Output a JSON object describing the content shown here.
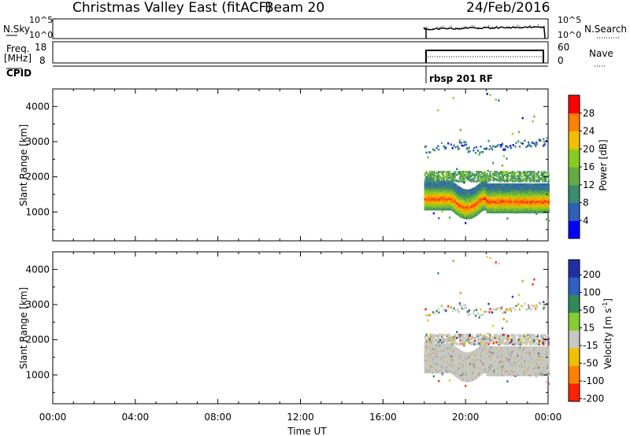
{
  "header": {
    "station": "Christmas Valley East (fitACF)",
    "beam": "Beam 20",
    "date": "24/Feb/2016"
  },
  "strips": {
    "nsky_label": "N.Sky",
    "nsky_ticks": [
      "10^5",
      "10^0"
    ],
    "nsearch_label": "N.Search",
    "nsearch_ticks": [
      "10^5",
      "10^0"
    ],
    "freq_label": "Freq.",
    "freq_unit": "[MHz]",
    "freq_ticks": [
      "18",
      "8"
    ],
    "nave_label": "Nave",
    "nave_ticks": [
      "60",
      "0"
    ],
    "cpid_label": "CPID",
    "cpid_value": "rbsp 201 RF"
  },
  "chart_data": [
    {
      "type": "heatmap",
      "panel": "power",
      "ylabel": "Slant Range [km]",
      "yticks": [
        "1000",
        "2000",
        "3000",
        "4000"
      ],
      "ylim": [
        180,
        4500
      ],
      "xlim": [
        0,
        24
      ],
      "colorbar_label": "Power [dB]",
      "colorbar_ticks": [
        "4",
        "8",
        "12",
        "16",
        "20",
        "24",
        "28"
      ],
      "colorbar_range": [
        0,
        32
      ],
      "colors": [
        "#0000ff",
        "#3060b8",
        "#3c8c6e",
        "#66aa44",
        "#88cc22",
        "#f0c000",
        "#ff8000",
        "#ff0000"
      ],
      "data_start_hour": 18.0,
      "data_end_hour": 24.0,
      "features": [
        {
          "name": "main-band",
          "range_km": [
            1000,
            1800
          ],
          "power_db": 28
        },
        {
          "name": "band-2000",
          "range_km": [
            1900,
            2200
          ],
          "power_db": 12
        },
        {
          "name": "rising-band",
          "range_km_start": 2500,
          "range_km_end": 3000,
          "power_db": 6
        }
      ]
    },
    {
      "type": "heatmap",
      "panel": "velocity",
      "ylabel": "Slant Range [km]",
      "yticks": [
        "1000",
        "2000",
        "3000",
        "4000"
      ],
      "ylim": [
        180,
        4500
      ],
      "xlim": [
        0,
        24
      ],
      "colorbar_label": "Velocity [m s^-1]",
      "colorbar_ticks": [
        "200",
        "100",
        "50",
        "15",
        "-15",
        "-50",
        "-100",
        "-200"
      ],
      "colors": [
        "#2030a0",
        "#3060c0",
        "#2e8b57",
        "#88cc33",
        "#c8c8c0",
        "#f0c000",
        "#ff8000",
        "#ff2000"
      ],
      "ground_scatter_color": "#c8c8c0"
    }
  ],
  "xaxis": {
    "label": "Time UT",
    "ticks": [
      "00:00",
      "04:00",
      "08:00",
      "12:00",
      "16:00",
      "20:00",
      "00:00"
    ]
  }
}
